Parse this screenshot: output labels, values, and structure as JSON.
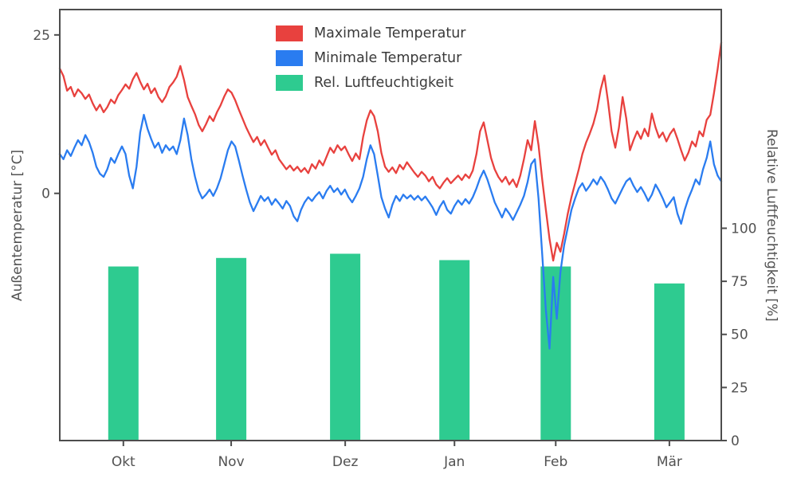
{
  "figure": {
    "background": "#ffffff"
  },
  "chart_data": {
    "type": "line+bar",
    "title": "",
    "xlabel": "",
    "ylabel_left": "Außentemperatur [°C]",
    "ylabel_right": "Relative Luftfeuchtigkeit [%]",
    "x_unit": "daily index, mid-September through mid-March",
    "x_range_days": [
      0,
      181
    ],
    "x_tick_labels": [
      "Okt",
      "Nov",
      "Dez",
      "Jan",
      "Feb",
      "Mär"
    ],
    "x_tick_positions_days": [
      17.4,
      46.9,
      78.1,
      108,
      135.7,
      166.8
    ],
    "ylim_left": [
      -39,
      29
    ],
    "left_ticks": [
      0,
      25
    ],
    "ylim_right": [
      0,
      203
    ],
    "right_ticks": [
      0,
      25,
      50,
      75,
      100
    ],
    "grid": false,
    "legend_position": "upper center",
    "frame_color": "#4d4d4d",
    "tick_label_color": "#525252",
    "series": [
      {
        "name": "Maximale Temperatur",
        "type": "line",
        "axis": "left",
        "color": "#e8413e",
        "values": [
          19.7,
          18.5,
          16.2,
          16.8,
          15.3,
          16.4,
          15.8,
          14.9,
          15.6,
          14.2,
          13.1,
          14.0,
          12.8,
          13.6,
          14.8,
          14.2,
          15.5,
          16.3,
          17.2,
          16.5,
          18.0,
          19.0,
          17.6,
          16.4,
          17.3,
          15.8,
          16.6,
          15.2,
          14.4,
          15.3,
          16.8,
          17.5,
          18.4,
          20.1,
          17.9,
          15.2,
          13.8,
          12.5,
          10.8,
          9.8,
          10.9,
          12.2,
          11.4,
          12.8,
          13.9,
          15.3,
          16.4,
          15.9,
          14.7,
          13.2,
          11.8,
          10.4,
          9.2,
          8.1,
          8.9,
          7.6,
          8.4,
          7.2,
          6.1,
          6.8,
          5.4,
          4.6,
          3.8,
          4.4,
          3.6,
          4.2,
          3.4,
          4.0,
          3.2,
          4.6,
          3.9,
          5.2,
          4.4,
          5.8,
          7.2,
          6.4,
          7.6,
          6.8,
          7.4,
          6.2,
          5.1,
          6.3,
          5.4,
          8.9,
          11.5,
          13.1,
          12.2,
          9.8,
          6.4,
          4.2,
          3.4,
          4.1,
          3.2,
          4.5,
          3.8,
          4.9,
          4.1,
          3.3,
          2.6,
          3.4,
          2.8,
          1.9,
          2.6,
          1.4,
          0.8,
          1.7,
          2.4,
          1.6,
          2.2,
          2.8,
          2.1,
          3.0,
          2.4,
          3.6,
          6.2,
          9.8,
          11.2,
          8.4,
          5.6,
          3.8,
          2.6,
          1.8,
          2.6,
          1.4,
          2.2,
          1.0,
          2.8,
          5.4,
          8.4,
          6.8,
          11.4,
          7.6,
          2.2,
          -2.6,
          -7.2,
          -10.6,
          -7.8,
          -9.2,
          -6.4,
          -3.2,
          -0.6,
          1.6,
          3.8,
          6.2,
          8.0,
          9.4,
          11.0,
          13.2,
          16.4,
          18.6,
          14.6,
          9.8,
          7.2,
          10.4,
          15.2,
          11.8,
          6.8,
          8.4,
          9.8,
          8.6,
          10.2,
          9.0,
          12.6,
          10.4,
          8.8,
          9.6,
          8.2,
          9.4,
          10.2,
          8.6,
          6.8,
          5.2,
          6.4,
          8.2,
          7.4,
          9.8,
          9.0,
          11.6,
          12.4,
          15.8,
          19.6,
          23.8
        ]
      },
      {
        "name": "Minimale Temperatur",
        "type": "line",
        "axis": "left",
        "color": "#2a7cf0",
        "values": [
          6.2,
          5.4,
          6.8,
          5.9,
          7.2,
          8.4,
          7.6,
          9.2,
          8.1,
          6.4,
          4.2,
          3.1,
          2.6,
          3.8,
          5.6,
          4.8,
          6.2,
          7.4,
          6.2,
          2.8,
          0.8,
          4.2,
          9.6,
          12.4,
          10.2,
          8.6,
          7.2,
          8.0,
          6.4,
          7.6,
          6.8,
          7.4,
          6.2,
          8.4,
          11.8,
          9.2,
          5.4,
          2.6,
          0.4,
          -0.8,
          -0.2,
          0.6,
          -0.4,
          0.8,
          2.4,
          4.6,
          6.8,
          8.2,
          7.4,
          5.2,
          2.8,
          0.6,
          -1.4,
          -2.8,
          -1.6,
          -0.4,
          -1.2,
          -0.6,
          -1.8,
          -0.9,
          -1.6,
          -2.4,
          -1.2,
          -2.0,
          -3.6,
          -4.4,
          -2.6,
          -1.4,
          -0.6,
          -1.2,
          -0.4,
          0.2,
          -0.8,
          0.4,
          1.2,
          0.2,
          0.8,
          -0.2,
          0.6,
          -0.6,
          -1.4,
          -0.4,
          0.8,
          2.6,
          5.4,
          7.6,
          6.2,
          2.8,
          -0.6,
          -2.4,
          -3.8,
          -1.8,
          -0.4,
          -1.2,
          -0.2,
          -0.8,
          -0.3,
          -1.0,
          -0.4,
          -1.1,
          -0.5,
          -1.3,
          -2.2,
          -3.4,
          -2.1,
          -1.2,
          -2.6,
          -3.2,
          -2.0,
          -1.1,
          -1.8,
          -0.9,
          -1.6,
          -0.6,
          0.8,
          2.4,
          3.6,
          2.2,
          0.4,
          -1.4,
          -2.6,
          -3.8,
          -2.4,
          -3.2,
          -4.2,
          -3.0,
          -1.8,
          -0.4,
          1.8,
          4.6,
          5.4,
          -0.8,
          -9.6,
          -18.4,
          -24.5,
          -13.2,
          -19.8,
          -12.4,
          -8.2,
          -5.4,
          -2.6,
          -0.8,
          0.8,
          1.6,
          0.4,
          1.2,
          2.2,
          1.4,
          2.6,
          1.8,
          0.6,
          -0.8,
          -1.6,
          -0.4,
          0.8,
          1.9,
          2.4,
          1.2,
          0.2,
          1.0,
          0.0,
          -1.2,
          -0.2,
          1.4,
          0.4,
          -0.8,
          -2.2,
          -1.4,
          -0.6,
          -3.2,
          -4.8,
          -2.6,
          -0.8,
          0.6,
          2.2,
          1.4,
          3.8,
          5.6,
          8.2,
          4.6,
          2.8,
          1.9
        ]
      },
      {
        "name": "Rel. Luftfeuchtigkeit",
        "type": "bar",
        "axis": "right",
        "color": "#2ecb90",
        "categories": [
          "Okt",
          "Nov",
          "Dez",
          "Jan",
          "Feb",
          "Mär"
        ],
        "values": [
          82,
          86,
          88,
          85,
          82,
          74
        ]
      }
    ]
  },
  "legend": {
    "items": [
      {
        "label": "Maximale Temperatur",
        "color": "#e8413e"
      },
      {
        "label": "Minimale Temperatur",
        "color": "#2a7cf0"
      },
      {
        "label": "Rel. Luftfeuchtigkeit",
        "color": "#2ecb90"
      }
    ]
  }
}
